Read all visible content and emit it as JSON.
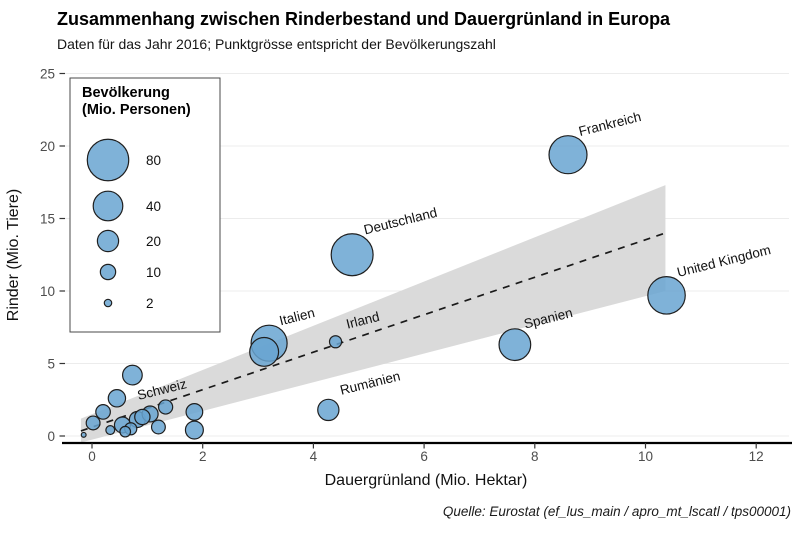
{
  "titles": {
    "title": "Zusammenhang zwischen Rinderbestand und Dauergrünland in Europa",
    "subtitle": "Daten für das Jahr 2016; Punktgrösse entspricht der Bevölkerungszahl",
    "caption": "Quelle: Eurostat (ef_lus_main / apro_mt_lscatl / tps00001)"
  },
  "chart_data": {
    "type": "scatter",
    "title": "Zusammenhang zwischen Rinderbestand und Dauergrünland in Europa",
    "subtitle": "Daten für das Jahr 2016; Punktgrösse entspricht der Bevölkerungszahl",
    "xlabel": "Dauergrünland (Mio. Hektar)",
    "ylabel": "Rinder (Mio. Tiere)",
    "xticks": [
      0,
      2,
      4,
      6,
      8,
      10,
      12
    ],
    "yticks": [
      0,
      5,
      10,
      15,
      20,
      25
    ],
    "xlim": [
      -0.5,
      12.6
    ],
    "ylim": [
      0,
      25
    ],
    "grid": "horizontal-only",
    "point_color": "#69a5d1",
    "point_outline": "#1f1f1f",
    "band_color": "#dadada",
    "legend": {
      "title_lines": [
        "Bevölkerung",
        "(Mio. Personen)"
      ],
      "sizes": [
        80,
        40,
        20,
        10,
        2
      ],
      "position": "top-left-inside"
    },
    "points": [
      {
        "x": 8.6,
        "y": 19.4,
        "size": 67,
        "label": "Frankreich"
      },
      {
        "x": 4.7,
        "y": 12.5,
        "size": 82,
        "label": "Deutschland"
      },
      {
        "x": 10.38,
        "y": 9.7,
        "size": 65,
        "label": "United Kingdom"
      },
      {
        "x": 3.2,
        "y": 6.4,
        "size": 60,
        "label": "Italien"
      },
      {
        "x": 3.11,
        "y": 5.8,
        "size": 38,
        "label": ""
      },
      {
        "x": 7.64,
        "y": 6.3,
        "size": 46,
        "label": "Spanien"
      },
      {
        "x": 4.4,
        "y": 6.5,
        "size": 6,
        "label": "Irland"
      },
      {
        "x": 4.27,
        "y": 1.8,
        "size": 20,
        "label": "Rumänien"
      },
      {
        "x": 1.33,
        "y": 2.0,
        "size": 8.4,
        "label": "Schweiz"
      },
      {
        "x": 0.73,
        "y": 4.2,
        "size": 17,
        "label": ""
      },
      {
        "x": 0.45,
        "y": 2.6,
        "size": 13,
        "label": ""
      },
      {
        "x": 0.2,
        "y": 1.66,
        "size": 9,
        "label": ""
      },
      {
        "x": 0.02,
        "y": 0.9,
        "size": 8,
        "label": ""
      },
      {
        "x": -0.15,
        "y": 0.08,
        "size": 0.7,
        "label": ""
      },
      {
        "x": 0.33,
        "y": 0.41,
        "size": 3,
        "label": ""
      },
      {
        "x": 0.55,
        "y": 0.76,
        "size": 11,
        "label": ""
      },
      {
        "x": 0.6,
        "y": 0.3,
        "size": 4.5,
        "label": ""
      },
      {
        "x": 0.7,
        "y": 0.5,
        "size": 6,
        "label": ""
      },
      {
        "x": 0.82,
        "y": 1.14,
        "size": 11,
        "label": ""
      },
      {
        "x": 0.91,
        "y": 1.31,
        "size": 10,
        "label": ""
      },
      {
        "x": 1.05,
        "y": 1.52,
        "size": 11,
        "label": ""
      },
      {
        "x": 1.2,
        "y": 0.62,
        "size": 8,
        "label": ""
      },
      {
        "x": 1.85,
        "y": 1.66,
        "size": 12,
        "label": ""
      },
      {
        "x": 1.85,
        "y": 0.41,
        "size": 14,
        "label": ""
      }
    ],
    "trend": {
      "type": "linear-dashed",
      "x0": -0.2,
      "y0": 0.35,
      "x1": 10.36,
      "y1": 14.0,
      "band": [
        [
          -0.2,
          1.2
        ],
        [
          10.36,
          17.3
        ],
        [
          10.36,
          10.0
        ],
        [
          -0.2,
          -0.45
        ]
      ]
    }
  }
}
